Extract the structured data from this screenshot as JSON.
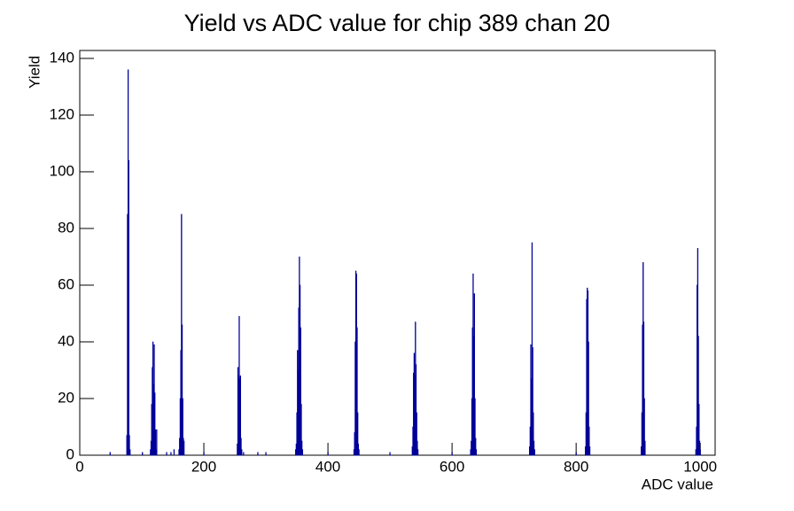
{
  "chart_data": {
    "type": "bar",
    "title": "Yield vs ADC value for chip 389 chan 20",
    "x_label": "ADC value",
    "y_label": "Yield",
    "color": "#000099",
    "x": [
      49,
      76,
      77,
      78,
      79,
      80,
      81,
      101,
      114,
      115,
      116,
      117,
      118,
      119,
      120,
      121,
      122,
      123,
      124,
      140,
      147,
      152,
      160,
      161,
      162,
      163,
      164,
      165,
      166,
      167,
      168,
      200,
      254,
      255,
      256,
      257,
      258,
      259,
      260,
      261,
      264,
      287,
      300,
      348,
      349,
      350,
      351,
      352,
      353,
      354,
      355,
      356,
      357,
      358,
      359,
      400,
      442,
      443,
      444,
      445,
      446,
      447,
      448,
      449,
      450,
      500,
      536,
      537,
      538,
      539,
      540,
      541,
      542,
      543,
      544,
      545,
      600,
      630,
      631,
      632,
      633,
      634,
      635,
      636,
      637,
      638,
      639,
      725,
      726,
      727,
      728,
      729,
      730,
      731,
      732,
      733,
      800,
      815,
      816,
      817,
      818,
      819,
      820,
      821,
      822,
      905,
      906,
      907,
      908,
      909,
      910,
      911,
      993,
      994,
      995,
      996,
      997,
      998,
      999,
      1000
    ],
    "values": [
      1,
      7,
      85,
      136,
      104,
      7,
      2,
      1,
      2,
      5,
      18,
      31,
      40,
      25,
      39,
      22,
      9,
      2,
      9,
      1,
      1,
      2,
      2,
      6,
      20,
      37,
      85,
      46,
      20,
      6,
      5,
      1,
      4,
      31,
      28,
      49,
      27,
      28,
      6,
      2,
      1,
      1,
      1,
      2,
      4,
      15,
      37,
      30,
      52,
      70,
      60,
      45,
      18,
      5,
      2,
      1,
      2,
      8,
      40,
      65,
      64,
      45,
      15,
      4,
      2,
      1,
      3,
      10,
      29,
      36,
      28,
      47,
      32,
      15,
      5,
      2,
      1,
      2,
      5,
      20,
      45,
      64,
      42,
      57,
      20,
      6,
      2,
      3,
      10,
      39,
      27,
      75,
      38,
      15,
      5,
      2,
      1,
      3,
      15,
      55,
      59,
      58,
      40,
      10,
      3,
      3,
      15,
      46,
      68,
      47,
      20,
      5,
      2,
      10,
      60,
      73,
      42,
      18,
      5,
      2
    ],
    "xlim": [
      0,
      1024
    ],
    "ylim": [
      0,
      142.8
    ],
    "xticks": [
      0,
      200,
      400,
      600,
      800,
      1000
    ],
    "yticks": [
      0,
      20,
      40,
      60,
      80,
      100,
      120,
      140
    ]
  }
}
